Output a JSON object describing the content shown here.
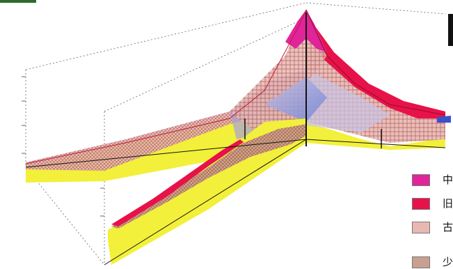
{
  "colors": {
    "middle_layer": "#e0249a",
    "old_layer": "#e8124a",
    "ancient_layer": "#e9b8b0",
    "lower_layer": "#c9a090",
    "bedrock": "#f2f03a",
    "blue_body": "#7f8fd6",
    "section_line": "#7a1020",
    "boundary": "#c11a3a"
  },
  "legend": [
    {
      "label": "中",
      "color": "#e0249a",
      "pattern": "grid"
    },
    {
      "label": "旧",
      "color": "#e8124a",
      "pattern": "grid"
    },
    {
      "label": "古",
      "color": "#e9b8b0",
      "pattern": "grid"
    },
    {
      "label": "少",
      "color": "#c9a090",
      "pattern": "cross"
    }
  ]
}
